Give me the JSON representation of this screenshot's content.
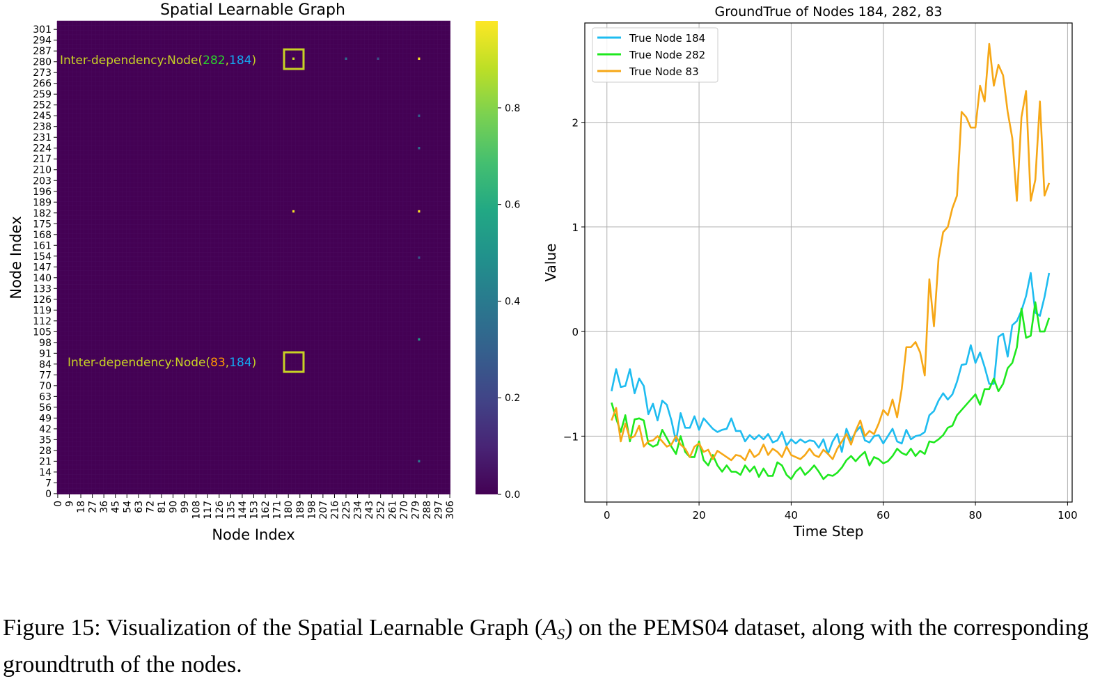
{
  "figure": {
    "caption_prefix": "Figure 15: Visualization of the Spatial Learnable Graph (",
    "caption_math": "A",
    "caption_sub": "S",
    "caption_suffix": ") on the PEMS04 dataset, along with the corresponding groundtruth of the nodes."
  },
  "chart_data": [
    {
      "type": "heatmap",
      "title": "Spatial Learnable Graph",
      "xlabel": "Node Index",
      "ylabel": "Node Index",
      "x_ticks": [
        0,
        9,
        18,
        27,
        36,
        45,
        54,
        63,
        72,
        81,
        90,
        99,
        108,
        117,
        126,
        135,
        144,
        153,
        162,
        171,
        180,
        189,
        198,
        207,
        216,
        225,
        234,
        243,
        252,
        261,
        270,
        279,
        288,
        297,
        306
      ],
      "y_ticks": [
        0,
        7,
        14,
        21,
        28,
        35,
        42,
        49,
        56,
        63,
        70,
        77,
        84,
        91,
        98,
        105,
        112,
        119,
        126,
        133,
        140,
        147,
        154,
        161,
        168,
        175,
        182,
        189,
        196,
        203,
        210,
        217,
        224,
        231,
        238,
        245,
        252,
        259,
        266,
        273,
        280,
        287,
        294,
        301
      ],
      "node_count": 307,
      "colormap": "viridis",
      "colorbar_range": [
        0.0,
        0.98
      ],
      "colorbar_ticks": [
        "0.0",
        "0.2",
        "0.4",
        "0.6",
        "0.8"
      ],
      "background_value": 0.0,
      "highlights": [
        {
          "row": 282,
          "col": 184,
          "value": 0.9
        },
        {
          "row": 282,
          "col": 282,
          "value": 0.98
        },
        {
          "row": 183,
          "col": 184,
          "value": 0.97
        },
        {
          "row": 183,
          "col": 282,
          "value": 0.98
        },
        {
          "row": 100,
          "col": 282,
          "value": 0.55
        },
        {
          "row": 21,
          "col": 282,
          "value": 0.4
        },
        {
          "row": 224,
          "col": 282,
          "value": 0.35
        },
        {
          "row": 245,
          "col": 282,
          "value": 0.3
        },
        {
          "row": 153,
          "col": 282,
          "value": 0.25
        },
        {
          "row": 282,
          "col": 225,
          "value": 0.35
        },
        {
          "row": 282,
          "col": 250,
          "value": 0.25
        }
      ],
      "annotations": [
        {
          "prefix": "Inter-dependency:Node(",
          "node_a": "282",
          "sep": ",",
          "node_b": "184",
          "suffix": ")",
          "row": 282,
          "col": 184
        },
        {
          "prefix": "Inter-dependency:Node(",
          "node_a": "83",
          "sep": ",",
          "node_b": "184",
          "suffix": ")",
          "row": 83,
          "col": 184
        }
      ]
    },
    {
      "type": "line",
      "title": "GroundTrue of Nodes 184, 282, 83",
      "xlabel": "Time Step",
      "ylabel": "Value",
      "xlim": [
        -4.8,
        101
      ],
      "ylim": [
        -1.63,
        2.95
      ],
      "x_ticks": [
        0,
        20,
        40,
        60,
        80,
        100
      ],
      "y_ticks": [
        -1,
        0,
        1,
        2
      ],
      "y_tick_labels": [
        "−1",
        "0",
        "1",
        "2"
      ],
      "grid": true,
      "legend": "top-left",
      "x": [
        1,
        2,
        3,
        4,
        5,
        6,
        7,
        8,
        9,
        10,
        11,
        12,
        13,
        14,
        15,
        16,
        17,
        18,
        19,
        20,
        21,
        22,
        23,
        24,
        25,
        26,
        27,
        28,
        29,
        30,
        31,
        32,
        33,
        34,
        35,
        36,
        37,
        38,
        39,
        40,
        41,
        42,
        43,
        44,
        45,
        46,
        47,
        48,
        49,
        50,
        51,
        52,
        53,
        54,
        55,
        56,
        57,
        58,
        59,
        60,
        61,
        62,
        63,
        64,
        65,
        66,
        67,
        68,
        69,
        70,
        71,
        72,
        73,
        74,
        75,
        76,
        77,
        78,
        79,
        80,
        81,
        82,
        83,
        84,
        85,
        86,
        87,
        88,
        89,
        90,
        91,
        92,
        93,
        94,
        95,
        96
      ],
      "series": [
        {
          "name": "True Node 184",
          "color": "#1ebcf0",
          "values": [
            -0.57,
            -0.36,
            -0.53,
            -0.52,
            -0.36,
            -0.59,
            -0.45,
            -0.52,
            -0.79,
            -0.69,
            -0.85,
            -0.66,
            -0.7,
            -0.85,
            -1.05,
            -0.78,
            -0.92,
            -0.92,
            -0.81,
            -0.94,
            -0.83,
            -0.88,
            -0.93,
            -0.96,
            -0.94,
            -0.93,
            -0.83,
            -0.95,
            -0.95,
            -1.05,
            -0.99,
            -1.03,
            -0.99,
            -1.03,
            -0.98,
            -1.06,
            -1.04,
            -0.96,
            -1.09,
            -1.03,
            -1.07,
            -1.03,
            -1.06,
            -1.04,
            -1.05,
            -1.11,
            -1.03,
            -1.17,
            -1.05,
            -0.98,
            -1.15,
            -0.93,
            -1.04,
            -0.96,
            -0.91,
            -1.04,
            -1.06,
            -1.0,
            -0.99,
            -1.07,
            -1.0,
            -0.93,
            -1.05,
            -1.07,
            -0.94,
            -1.03,
            -1.0,
            -0.99,
            -0.96,
            -0.8,
            -0.76,
            -0.66,
            -0.59,
            -0.65,
            -0.6,
            -0.48,
            -0.32,
            -0.31,
            -0.13,
            -0.3,
            -0.2,
            -0.34,
            -0.5,
            -0.5,
            -0.05,
            -0.02,
            -0.24,
            0.06,
            0.1,
            0.2,
            0.34,
            0.56,
            0.18,
            0.15,
            0.33,
            0.56
          ]
        },
        {
          "name": "True Node 282",
          "color": "#1ee81e",
          "values": [
            -0.68,
            -0.83,
            -0.96,
            -0.8,
            -1.05,
            -0.84,
            -0.83,
            -0.85,
            -1.07,
            -1.1,
            -1.08,
            -0.94,
            -1.02,
            -1.1,
            -1.17,
            -1.0,
            -1.15,
            -1.2,
            -1.2,
            -1.05,
            -1.23,
            -1.28,
            -1.18,
            -1.28,
            -1.34,
            -1.28,
            -1.34,
            -1.34,
            -1.37,
            -1.28,
            -1.34,
            -1.29,
            -1.39,
            -1.31,
            -1.38,
            -1.38,
            -1.25,
            -1.28,
            -1.37,
            -1.41,
            -1.34,
            -1.3,
            -1.37,
            -1.33,
            -1.28,
            -1.34,
            -1.41,
            -1.37,
            -1.38,
            -1.35,
            -1.3,
            -1.23,
            -1.19,
            -1.24,
            -1.19,
            -1.15,
            -1.28,
            -1.2,
            -1.22,
            -1.26,
            -1.24,
            -1.19,
            -1.12,
            -1.16,
            -1.18,
            -1.12,
            -1.19,
            -1.14,
            -1.17,
            -1.05,
            -1.06,
            -1.03,
            -0.99,
            -0.92,
            -0.9,
            -0.8,
            -0.75,
            -0.7,
            -0.65,
            -0.6,
            -0.7,
            -0.55,
            -0.55,
            -0.45,
            -0.57,
            -0.5,
            -0.35,
            -0.3,
            -0.15,
            0.22,
            -0.06,
            -0.04,
            0.28,
            0.0,
            0.0,
            0.13
          ]
        },
        {
          "name": "True Node 83",
          "color": "#f6a716",
          "values": [
            -0.85,
            -0.73,
            -1.05,
            -0.88,
            -1.02,
            -1.0,
            -0.9,
            -1.1,
            -1.05,
            -1.04,
            -1.0,
            -1.05,
            -1.1,
            -1.08,
            -1.0,
            -1.08,
            -1.12,
            -1.2,
            -1.1,
            -1.07,
            -1.15,
            -1.13,
            -1.22,
            -1.14,
            -1.17,
            -1.2,
            -1.23,
            -1.18,
            -1.19,
            -1.23,
            -1.13,
            -1.2,
            -1.17,
            -1.08,
            -1.18,
            -1.12,
            -1.15,
            -1.2,
            -1.1,
            -1.18,
            -1.2,
            -1.22,
            -1.18,
            -1.12,
            -1.18,
            -1.2,
            -1.13,
            -1.17,
            -1.22,
            -1.12,
            -1.05,
            -0.98,
            -1.08,
            -0.95,
            -0.85,
            -1.0,
            -0.95,
            -0.98,
            -0.88,
            -0.75,
            -0.8,
            -0.65,
            -0.82,
            -0.55,
            -0.15,
            -0.15,
            -0.1,
            -0.2,
            -0.42,
            0.5,
            0.05,
            0.7,
            0.95,
            1.0,
            1.18,
            1.3,
            2.1,
            2.05,
            1.95,
            1.95,
            2.35,
            2.2,
            2.75,
            2.35,
            2.55,
            2.45,
            2.1,
            1.85,
            1.25,
            2.05,
            2.3,
            1.25,
            1.45,
            2.2,
            1.3,
            1.42
          ]
        }
      ]
    }
  ]
}
